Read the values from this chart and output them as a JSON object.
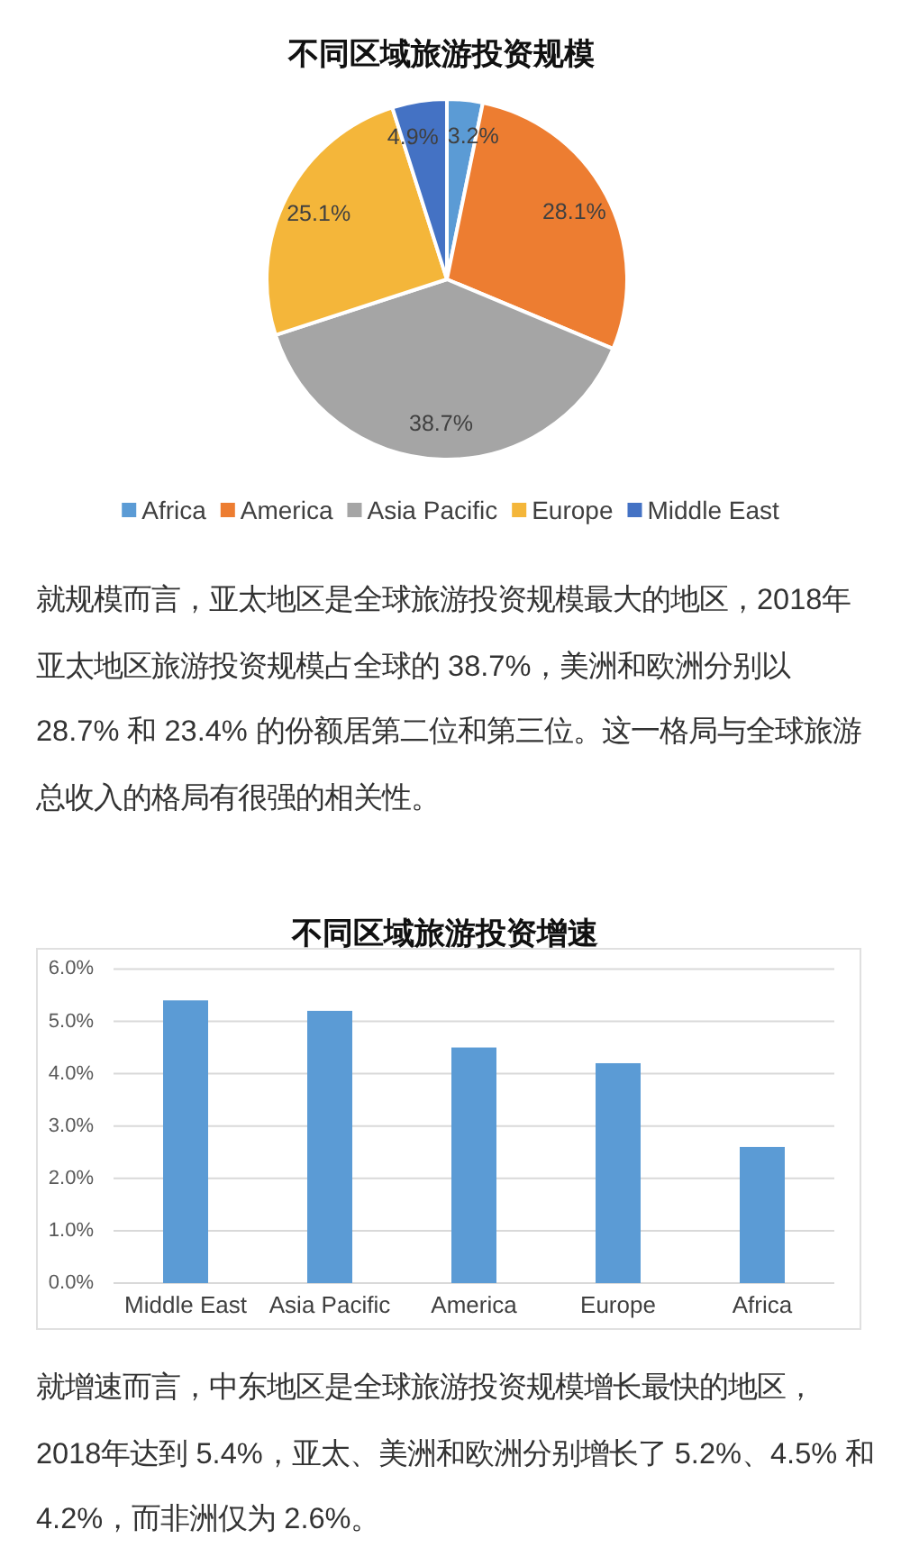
{
  "chart_data": [
    {
      "type": "pie",
      "title": "不同区域旅游投资规模",
      "categories": [
        "Africa",
        "America",
        "Asia Pacific",
        "Europe",
        "Middle East"
      ],
      "values": [
        3.2,
        28.1,
        38.7,
        25.1,
        4.9
      ],
      "colors": [
        "#5b9bd5",
        "#ed7d31",
        "#a5a5a5",
        "#f4b63a",
        "#4472c4"
      ],
      "value_labels": [
        "3.2%",
        "28.1%",
        "38.7%",
        "25.1%",
        "4.9%"
      ],
      "legend": "bottom",
      "annotations": [
        "就规模而言，亚太地区是全球旅游投资规模最大的地区，2018年亚太地区旅游投资规模占全球的 38.7%，美洲和欧洲分别以 28.7% 和 23.4% 的份额居第二位和第三位。这一格局与全球旅游总收入的格局有很强的相关性。"
      ]
    },
    {
      "type": "bar",
      "title": "不同区域旅游投资增速",
      "categories": [
        "Middle East",
        "Asia Pacific",
        "America",
        "Europe",
        "Africa"
      ],
      "values": [
        5.4,
        5.2,
        4.5,
        4.2,
        2.6
      ],
      "color": "#5b9bd5",
      "ylim": [
        0,
        6
      ],
      "yticks": [
        {
          "value": 0,
          "label": "0.0%"
        },
        {
          "value": 1,
          "label": "1.0%"
        },
        {
          "value": 2,
          "label": "2.0%"
        },
        {
          "value": 3,
          "label": "3.0%"
        },
        {
          "value": 4,
          "label": "4.0%"
        },
        {
          "value": 5,
          "label": "5.0%"
        },
        {
          "value": 6,
          "label": "6.0%"
        }
      ],
      "grid": "y",
      "annotations": [
        "就增速而言，中东地区是全球旅游投资规模增长最快的地区，2018年达到 5.4%，亚太、美洲和欧洲分别增长了 5.2%、4.5% 和 4.2%，而非洲仅为 2.6%。"
      ]
    }
  ]
}
